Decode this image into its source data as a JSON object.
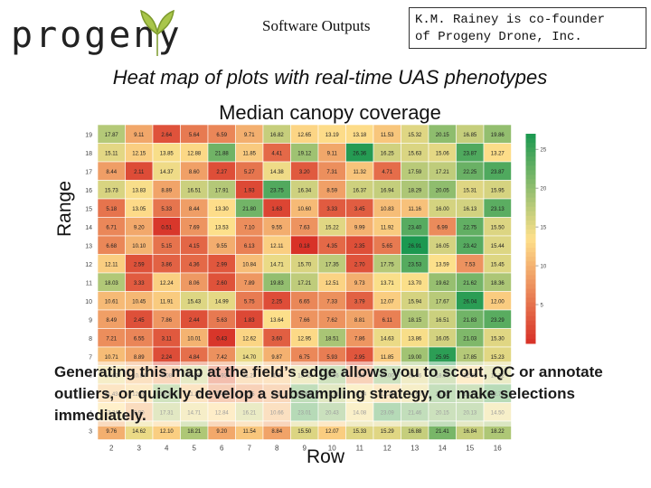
{
  "header": {
    "logo_text": "progeny",
    "section_title": "Software Outputs",
    "credit_lines": [
      "K.M. Rainey is co-founder",
      "of Progeny Drone, Inc."
    ]
  },
  "slide": {
    "heading": "Heat map of plots with real-time UAS phenotypes",
    "caption": "Generating this map at the field’s edge allows you to scout, QC or annotate outliers, or quickly develop a subsampling strategy, or make selections immediately."
  },
  "chart_data": {
    "type": "heatmap",
    "title": "Median canopy coverage",
    "xlabel": "Row",
    "ylabel": "Range",
    "x_ticks": [
      "2",
      "3",
      "4",
      "5",
      "6",
      "7",
      "8",
      "9",
      "10",
      "11",
      "12",
      "13",
      "14",
      "15",
      "16"
    ],
    "y_ticks": [
      "19",
      "18",
      "17",
      "16",
      "15",
      "14",
      "13",
      "12",
      "11",
      "10",
      "9",
      "8",
      "7",
      "6",
      "5",
      "4",
      "3"
    ],
    "colorbar_ticks": [
      "25",
      "20",
      "15",
      "10",
      "5"
    ],
    "color_range": [
      0,
      27
    ],
    "colors": {
      "low": "#d73027",
      "mid": "#fee08b",
      "high": "#1a9850"
    },
    "values": [
      [
        17.87,
        9.11,
        2.64,
        5.64,
        6.59,
        9.71,
        16.82,
        12.65,
        13.19,
        13.18,
        11.53,
        15.32,
        20.15,
        16.85,
        19.86
      ],
      [
        15.11,
        12.15,
        13.85,
        12.88,
        21.88,
        11.85,
        4.41,
        19.12,
        9.11,
        26.36,
        16.25,
        15.63,
        15.06,
        23.87,
        13.27
      ],
      [
        8.44,
        2.11,
        14.37,
        8.6,
        2.27,
        5.27,
        14.38,
        3.2,
        7.31,
        11.32,
        4.71,
        17.59,
        17.21,
        22.25,
        23.87
      ],
      [
        15.73,
        13.83,
        8.89,
        16.51,
        17.91,
        1.93,
        23.75,
        16.34,
        8.59,
        16.37,
        16.94,
        18.29,
        20.05,
        15.31,
        15.95
      ],
      [
        5.18,
        13.05,
        5.33,
        8.44,
        13.3,
        21.8,
        1.63,
        10.6,
        3.33,
        3.45,
        10.83,
        11.16,
        16.0,
        16.13,
        23.13
      ],
      [
        6.71,
        9.2,
        0.51,
        7.69,
        13.53,
        7.1,
        9.55,
        7.63,
        15.22,
        9.99,
        11.92,
        23.4,
        6.99,
        22.75,
        15.5
      ],
      [
        6.68,
        10.1,
        5.15,
        4.15,
        9.55,
        6.13,
        12.11,
        0.18,
        4.35,
        2.35,
        5.65,
        26.91,
        16.05,
        23.42,
        15.44
      ],
      [
        12.11,
        2.59,
        3.86,
        4.36,
        2.99,
        10.84,
        14.71,
        15.7,
        17.35,
        2.7,
        17.75,
        23.53,
        13.59,
        7.53,
        15.45
      ],
      [
        18.03,
        3.33,
        12.24,
        8.06,
        2.6,
        7.89,
        19.83,
        17.21,
        12.51,
        9.73,
        13.71,
        13.7,
        19.62,
        21.62,
        18.36
      ],
      [
        10.61,
        10.45,
        11.91,
        15.43,
        14.99,
        5.75,
        2.25,
        6.65,
        7.33,
        3.79,
        12.07,
        15.94,
        17.67,
        26.04,
        12.0
      ],
      [
        8.49,
        2.45,
        7.86,
        2.44,
        5.63,
        1.83,
        13.64,
        7.66,
        7.62,
        8.81,
        6.11,
        18.15,
        16.51,
        21.83,
        23.29
      ],
      [
        7.21,
        6.55,
        3.11,
        10.01,
        0.43,
        12.62,
        3.6,
        12.95,
        18.51,
        7.86,
        14.63,
        13.86,
        16.05,
        21.03,
        15.3
      ],
      [
        10.71,
        8.89,
        2.24,
        4.84,
        7.42,
        14.7,
        9.87,
        6.75,
        5.93,
        2.95,
        11.85,
        19.0,
        25.95,
        17.85,
        15.23
      ],
      [
        14.62,
        10.84,
        9.08,
        16.55,
        4.93,
        11.23,
        11.28,
        15.42,
        19.66,
        8.26,
        20.0,
        15.46,
        18.8,
        12.91,
        16.12
      ],
      [
        11.43,
        12.28,
        19.53,
        11.27,
        7.44,
        8.15,
        9.22,
        21.68,
        17.31,
        14.04,
        12.25,
        14.6,
        21.02,
        19.77,
        22.7
      ],
      [
        13.34,
        9.9,
        17.31,
        14.71,
        12.84,
        16.21,
        10.66,
        23.01,
        20.43,
        14.08,
        23.09,
        21.46,
        20.15,
        20.13,
        14.5
      ],
      [
        9.76,
        14.62,
        12.1,
        18.21,
        9.2,
        11.54,
        8.84,
        15.5,
        12.07,
        15.33,
        15.29,
        16.88,
        21.41,
        16.84,
        18.22
      ]
    ]
  }
}
